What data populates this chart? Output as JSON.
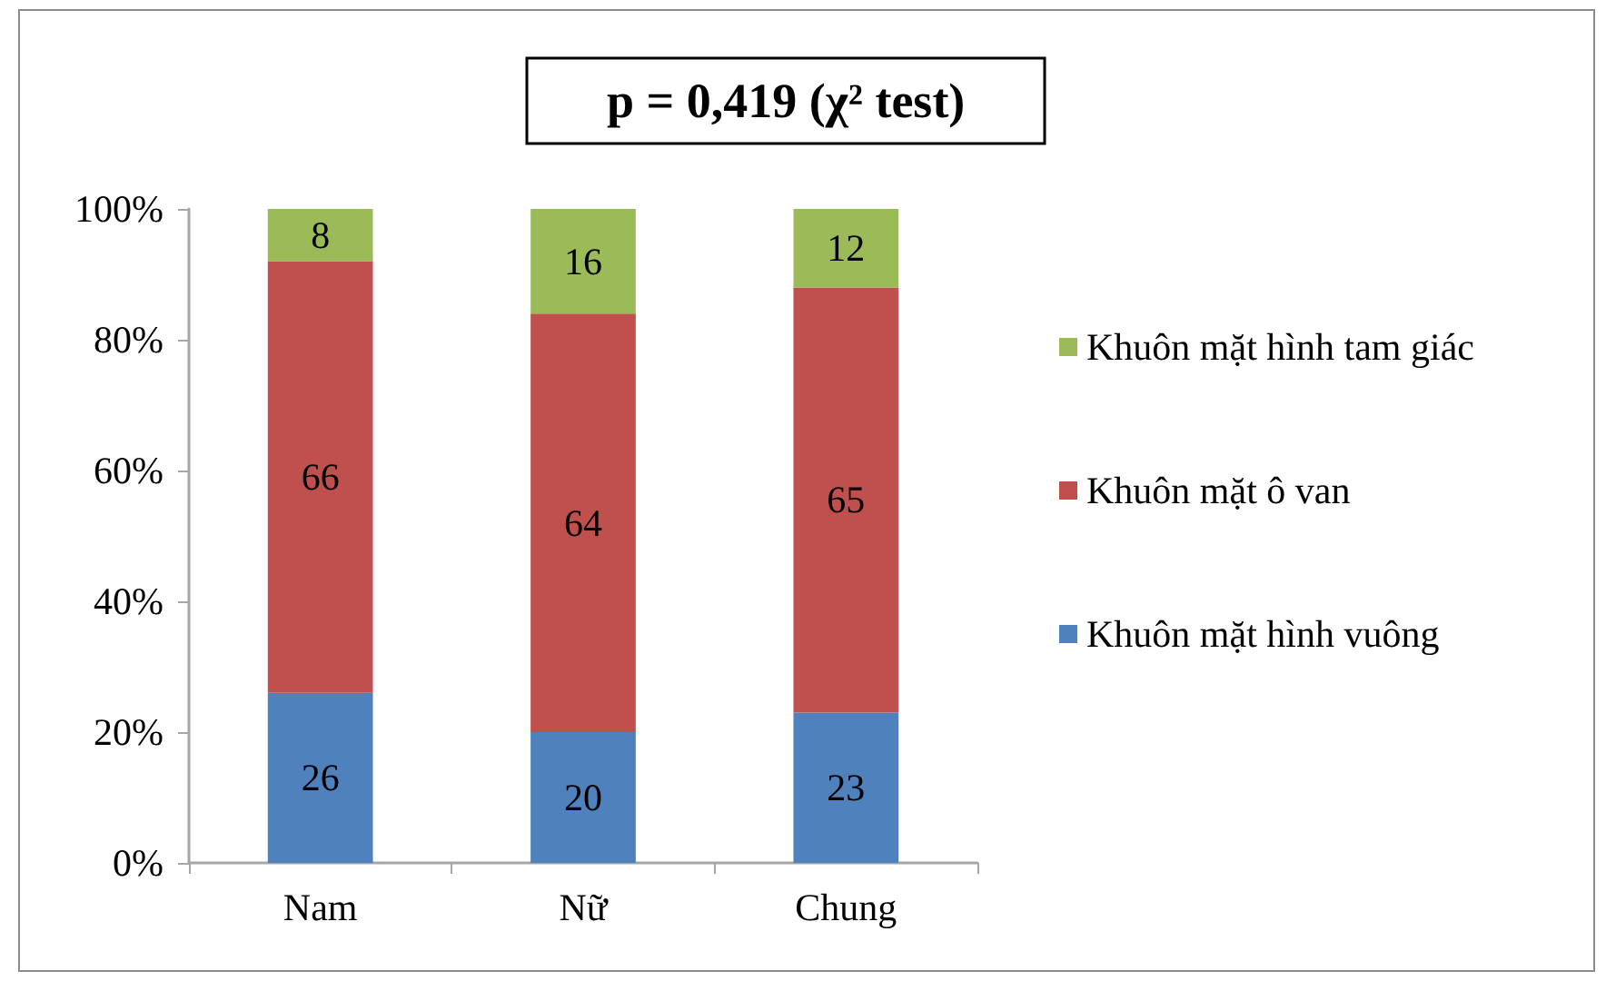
{
  "chart_data": {
    "type": "bar",
    "title": "p = 0,419 (χ² test)",
    "categories": [
      "Nam",
      "Nữ",
      "Chung"
    ],
    "stacked": true,
    "series": [
      {
        "name": "Khuôn mặt hình vuông",
        "color": "#4f81bd",
        "values": [
          26,
          20,
          23
        ]
      },
      {
        "name": "Khuôn mặt ô van",
        "color": "#c0504d",
        "values": [
          66,
          64,
          65
        ]
      },
      {
        "name": "Khuôn mặt hình tam giác",
        "color": "#9bbb59",
        "values": [
          8,
          16,
          12
        ]
      }
    ],
    "ylim": [
      0,
      100
    ],
    "yticks": [
      {
        "value": 0,
        "label": "0%"
      },
      {
        "value": 20,
        "label": "20%"
      },
      {
        "value": 40,
        "label": "40%"
      },
      {
        "value": 60,
        "label": "60%"
      },
      {
        "value": 80,
        "label": "80%"
      },
      {
        "value": 100,
        "label": "100%"
      }
    ],
    "grid": false,
    "legend": "right",
    "data_labels": true
  }
}
